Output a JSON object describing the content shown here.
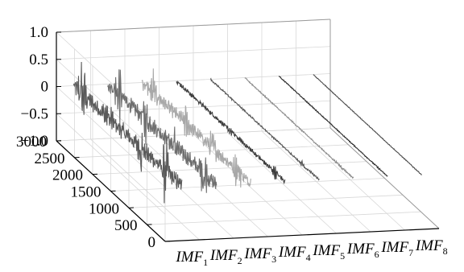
{
  "chart_data": {
    "type": "line",
    "projection": "3d-waterfall",
    "title": "",
    "xlabel": "",
    "ylabel": "",
    "zlabel": "",
    "grid": true,
    "depth_ticks": [
      "0",
      "500",
      "1000",
      "1500",
      "2000",
      "2500",
      "3000"
    ],
    "depth_range": [
      0,
      3000
    ],
    "z_ticks": [
      "1.0",
      "0.5",
      "0",
      "−0.5",
      "−1.0"
    ],
    "z_range": [
      -1.0,
      1.0
    ],
    "series": [
      {
        "name": "IMF",
        "sub": "1",
        "color": "#5a5a5a",
        "amplitude": 0.45,
        "bursts": [
          {
            "pos": 0.08,
            "amp": 0.9
          },
          {
            "pos": 0.32,
            "amp": 0.55
          },
          {
            "pos": 0.62,
            "amp": 0.5
          },
          {
            "pos": 0.85,
            "amp": 0.85
          }
        ]
      },
      {
        "name": "IMF",
        "sub": "2",
        "color": "#6e6e6e",
        "amplitude": 0.4,
        "bursts": [
          {
            "pos": 0.1,
            "amp": 0.8
          },
          {
            "pos": 0.35,
            "amp": 0.6
          },
          {
            "pos": 0.6,
            "amp": 0.55
          },
          {
            "pos": 0.88,
            "amp": 0.7
          }
        ]
      },
      {
        "name": "IMF",
        "sub": "3",
        "color": "#a8a8a8",
        "amplitude": 0.35,
        "bursts": [
          {
            "pos": 0.1,
            "amp": 0.7
          },
          {
            "pos": 0.4,
            "amp": 0.45
          },
          {
            "pos": 0.65,
            "amp": 0.5
          },
          {
            "pos": 0.88,
            "amp": 0.6
          }
        ]
      },
      {
        "name": "IMF",
        "sub": "4",
        "color": "#3c3c3c",
        "amplitude": 0.12,
        "bursts": [
          {
            "pos": 0.5,
            "amp": 0.2
          },
          {
            "pos": 0.9,
            "amp": 0.55
          }
        ]
      },
      {
        "name": "IMF",
        "sub": "5",
        "color": "#555555",
        "amplitude": 0.05,
        "bursts": [
          {
            "pos": 0.86,
            "amp": 0.9
          }
        ]
      },
      {
        "name": "IMF",
        "sub": "6",
        "color": "#8c8c8c",
        "amplitude": 0.04,
        "bursts": [
          {
            "pos": 0.88,
            "amp": 0.35
          }
        ]
      },
      {
        "name": "IMF",
        "sub": "7",
        "color": "#2a2a2a",
        "amplitude": 0.03,
        "bursts": [
          {
            "pos": 0.9,
            "amp": 0.25
          }
        ]
      },
      {
        "name": "IMF",
        "sub": "8",
        "color": "#4a4a4a",
        "amplitude": 0.02,
        "bursts": [
          {
            "pos": 0.92,
            "amp": 0.15
          }
        ]
      }
    ]
  }
}
